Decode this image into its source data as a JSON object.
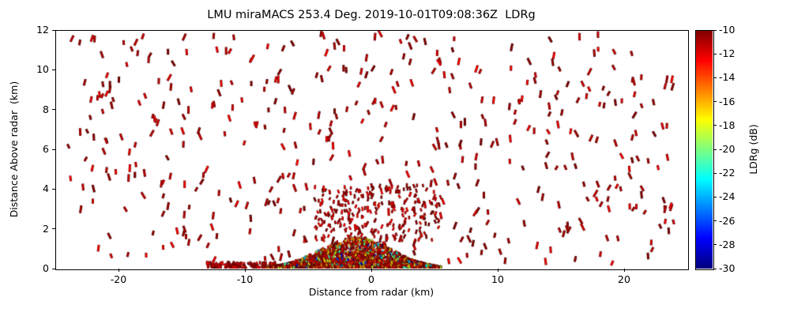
{
  "chart_data": {
    "type": "scatter",
    "title": "LMU miraMACS 253.4 Deg. 2019-10-01T09:08:36Z  LDRg",
    "xlabel": "Distance from radar (km)",
    "ylabel": "Distance Above radar  (km)",
    "xlim": [
      -25,
      25
    ],
    "ylim": [
      0,
      12
    ],
    "xticks": [
      -20,
      -10,
      0,
      10,
      20
    ],
    "yticks": [
      0,
      2,
      4,
      6,
      8,
      10,
      12
    ],
    "grid": false,
    "colorbar": {
      "label": "LDRg (dB)",
      "min": -30,
      "max": -10,
      "ticks": [
        -10,
        -12,
        -14,
        -16,
        -18,
        -20,
        -22,
        -24,
        -26,
        -28,
        -30
      ],
      "colormap": "jet",
      "top_color": "#7f0000",
      "bottom_color": "#00007f"
    },
    "points": {
      "seed": 20191001,
      "mark_shape": "tilted-dash",
      "regions": [
        {
          "id": "aloft-sparse-echoes",
          "count": 470,
          "x": [
            -24,
            24
          ],
          "y": [
            0.25,
            11.9
          ],
          "len": [
            5,
            9
          ],
          "w": 2,
          "values": {
            "mode": "uniform",
            "range": [
              -12.5,
              -10
            ]
          }
        },
        {
          "id": "mid-level-cone",
          "count": 260,
          "x": [
            -4.5,
            5.5
          ],
          "y": [
            1.4,
            4.2
          ],
          "len": [
            3,
            5
          ],
          "w": 1.6,
          "values": {
            "mode": "uniform",
            "range": [
              -13,
              -10
            ]
          }
        },
        {
          "id": "near-ground-tail",
          "count": 130,
          "x": [
            -13,
            -7.5
          ],
          "y": [
            0.02,
            0.3
          ],
          "len": [
            3,
            5
          ],
          "w": 1.6,
          "values": {
            "mode": "uniform",
            "range": [
              -13,
              -10
            ]
          }
        },
        {
          "id": "boundary-layer-dense",
          "count": 2800,
          "x": [
            -9.5,
            5.5
          ],
          "len": [
            2,
            4
          ],
          "w": 1.4,
          "envelope": {
            "peak": 1.55,
            "center": -1.2,
            "sigma": 4.0
          },
          "values": {
            "mode": "weighted",
            "weights": [
              [
                0.6,
                -10,
                -13.5
              ],
              [
                0.24,
                -13.5,
                -17
              ],
              [
                0.11,
                -17,
                -22
              ],
              [
                0.05,
                -22,
                -30
              ]
            ]
          }
        }
      ]
    }
  }
}
